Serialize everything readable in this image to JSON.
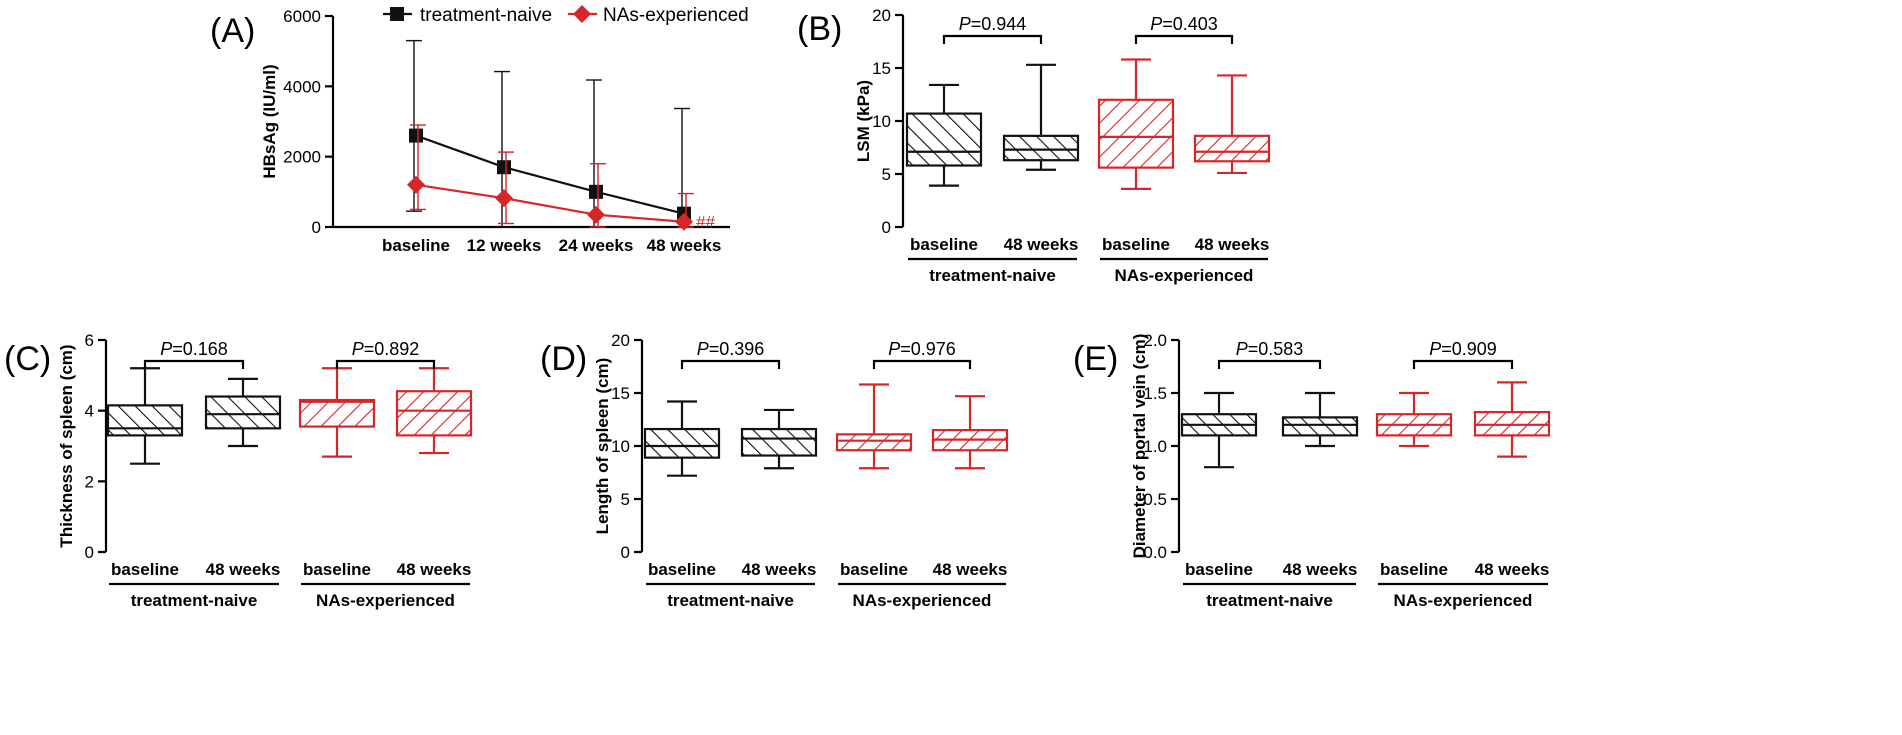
{
  "colors": {
    "naive": "#111111",
    "experienced": "#d7262a"
  },
  "chart_data": [
    {
      "panel": "(A)",
      "type": "line",
      "title": "",
      "ylabel": "HBsAg (IU/ml)",
      "ylim": [
        0,
        6000
      ],
      "yticks": [
        "0",
        "2000",
        "4000",
        "6000"
      ],
      "categories": [
        "baseline",
        "12 weeks",
        "24 weeks",
        "48 weeks"
      ],
      "legend": [
        "treatment-naive",
        "NAs-experienced"
      ],
      "annotation": "##",
      "series": [
        {
          "name": "treatment-naive",
          "marker": "square",
          "values": [
            2600,
            1700,
            1000,
            380
          ],
          "err_high": [
            5300,
            4420,
            4180,
            3370
          ],
          "err_low": [
            450,
            0,
            0,
            0
          ]
        },
        {
          "name": "NAs-experienced",
          "marker": "diamond",
          "values": [
            1200,
            820,
            350,
            150
          ],
          "err_high": [
            2900,
            2130,
            1800,
            950
          ],
          "err_low": [
            500,
            100,
            0,
            0
          ]
        }
      ]
    },
    {
      "panel": "(B)",
      "type": "box",
      "ylabel": "LSM (kPa)",
      "ylim": [
        0,
        20
      ],
      "yticks": [
        "0",
        "5",
        "10",
        "15",
        "20"
      ],
      "categories": [
        "baseline",
        "48 weeks",
        "baseline",
        "48 weeks"
      ],
      "groups": [
        "treatment-naive",
        "NAs-experienced"
      ],
      "p_values": [
        "=0.944",
        "=0.403"
      ],
      "boxes": [
        {
          "min": 3.9,
          "q1": 5.8,
          "median": 7.1,
          "q3": 10.7,
          "max": 13.4
        },
        {
          "min": 5.4,
          "q1": 6.3,
          "median": 7.3,
          "q3": 8.6,
          "max": 15.3
        },
        {
          "min": 3.6,
          "q1": 5.6,
          "median": 8.5,
          "q3": 12.0,
          "max": 15.8
        },
        {
          "min": 5.1,
          "q1": 6.2,
          "median": 7.1,
          "q3": 8.6,
          "max": 14.3
        }
      ]
    },
    {
      "panel": "(C)",
      "type": "box",
      "ylabel": "Thickness of spleen (cm)",
      "ylim": [
        0,
        6
      ],
      "yticks": [
        "0",
        "2",
        "4",
        "6"
      ],
      "categories": [
        "baseline",
        "48 weeks",
        "baseline",
        "48 weeks"
      ],
      "groups": [
        "treatment-naive",
        "NAs-experienced"
      ],
      "p_values": [
        "=0.168",
        "=0.892"
      ],
      "boxes": [
        {
          "min": 2.5,
          "q1": 3.3,
          "median": 3.5,
          "q3": 4.15,
          "max": 5.2
        },
        {
          "min": 3.0,
          "q1": 3.5,
          "median": 3.9,
          "q3": 4.4,
          "max": 4.9
        },
        {
          "min": 2.7,
          "q1": 3.55,
          "median": 4.25,
          "q3": 4.3,
          "max": 5.2
        },
        {
          "min": 2.8,
          "q1": 3.3,
          "median": 4.0,
          "q3": 4.55,
          "max": 5.2
        }
      ]
    },
    {
      "panel": "(D)",
      "type": "box",
      "ylabel": "Length of spleen (cm)",
      "ylim": [
        0,
        20
      ],
      "yticks": [
        "0",
        "5",
        "10",
        "15",
        "20"
      ],
      "categories": [
        "baseline",
        "48 weeks",
        "baseline",
        "48 weeks"
      ],
      "groups": [
        "treatment-naive",
        "NAs-experienced"
      ],
      "p_values": [
        "=0.396",
        "=0.976"
      ],
      "boxes": [
        {
          "min": 7.2,
          "q1": 8.9,
          "median": 10.0,
          "q3": 11.6,
          "max": 14.2
        },
        {
          "min": 7.9,
          "q1": 9.1,
          "median": 10.7,
          "q3": 11.6,
          "max": 13.4
        },
        {
          "min": 7.9,
          "q1": 9.6,
          "median": 10.5,
          "q3": 11.1,
          "max": 15.8
        },
        {
          "min": 7.9,
          "q1": 9.6,
          "median": 10.6,
          "q3": 11.5,
          "max": 14.7
        }
      ]
    },
    {
      "panel": "(E)",
      "type": "box",
      "ylabel": "Diameter of portal vein (cm)",
      "ylim": [
        0,
        2
      ],
      "yticks": [
        "0.0",
        "0.5",
        "1.0",
        "1.5",
        "2.0"
      ],
      "categories": [
        "baseline",
        "48 weeks",
        "baseline",
        "48 weeks"
      ],
      "groups": [
        "treatment-naive",
        "NAs-experienced"
      ],
      "p_values": [
        "=0.583",
        "=0.909"
      ],
      "boxes": [
        {
          "min": 0.8,
          "q1": 1.1,
          "median": 1.2,
          "q3": 1.3,
          "max": 1.5
        },
        {
          "min": 1.0,
          "q1": 1.1,
          "median": 1.2,
          "q3": 1.27,
          "max": 1.5
        },
        {
          "min": 1.0,
          "q1": 1.1,
          "median": 1.2,
          "q3": 1.3,
          "max": 1.5
        },
        {
          "min": 0.9,
          "q1": 1.1,
          "median": 1.2,
          "q3": 1.32,
          "max": 1.6
        }
      ]
    }
  ]
}
